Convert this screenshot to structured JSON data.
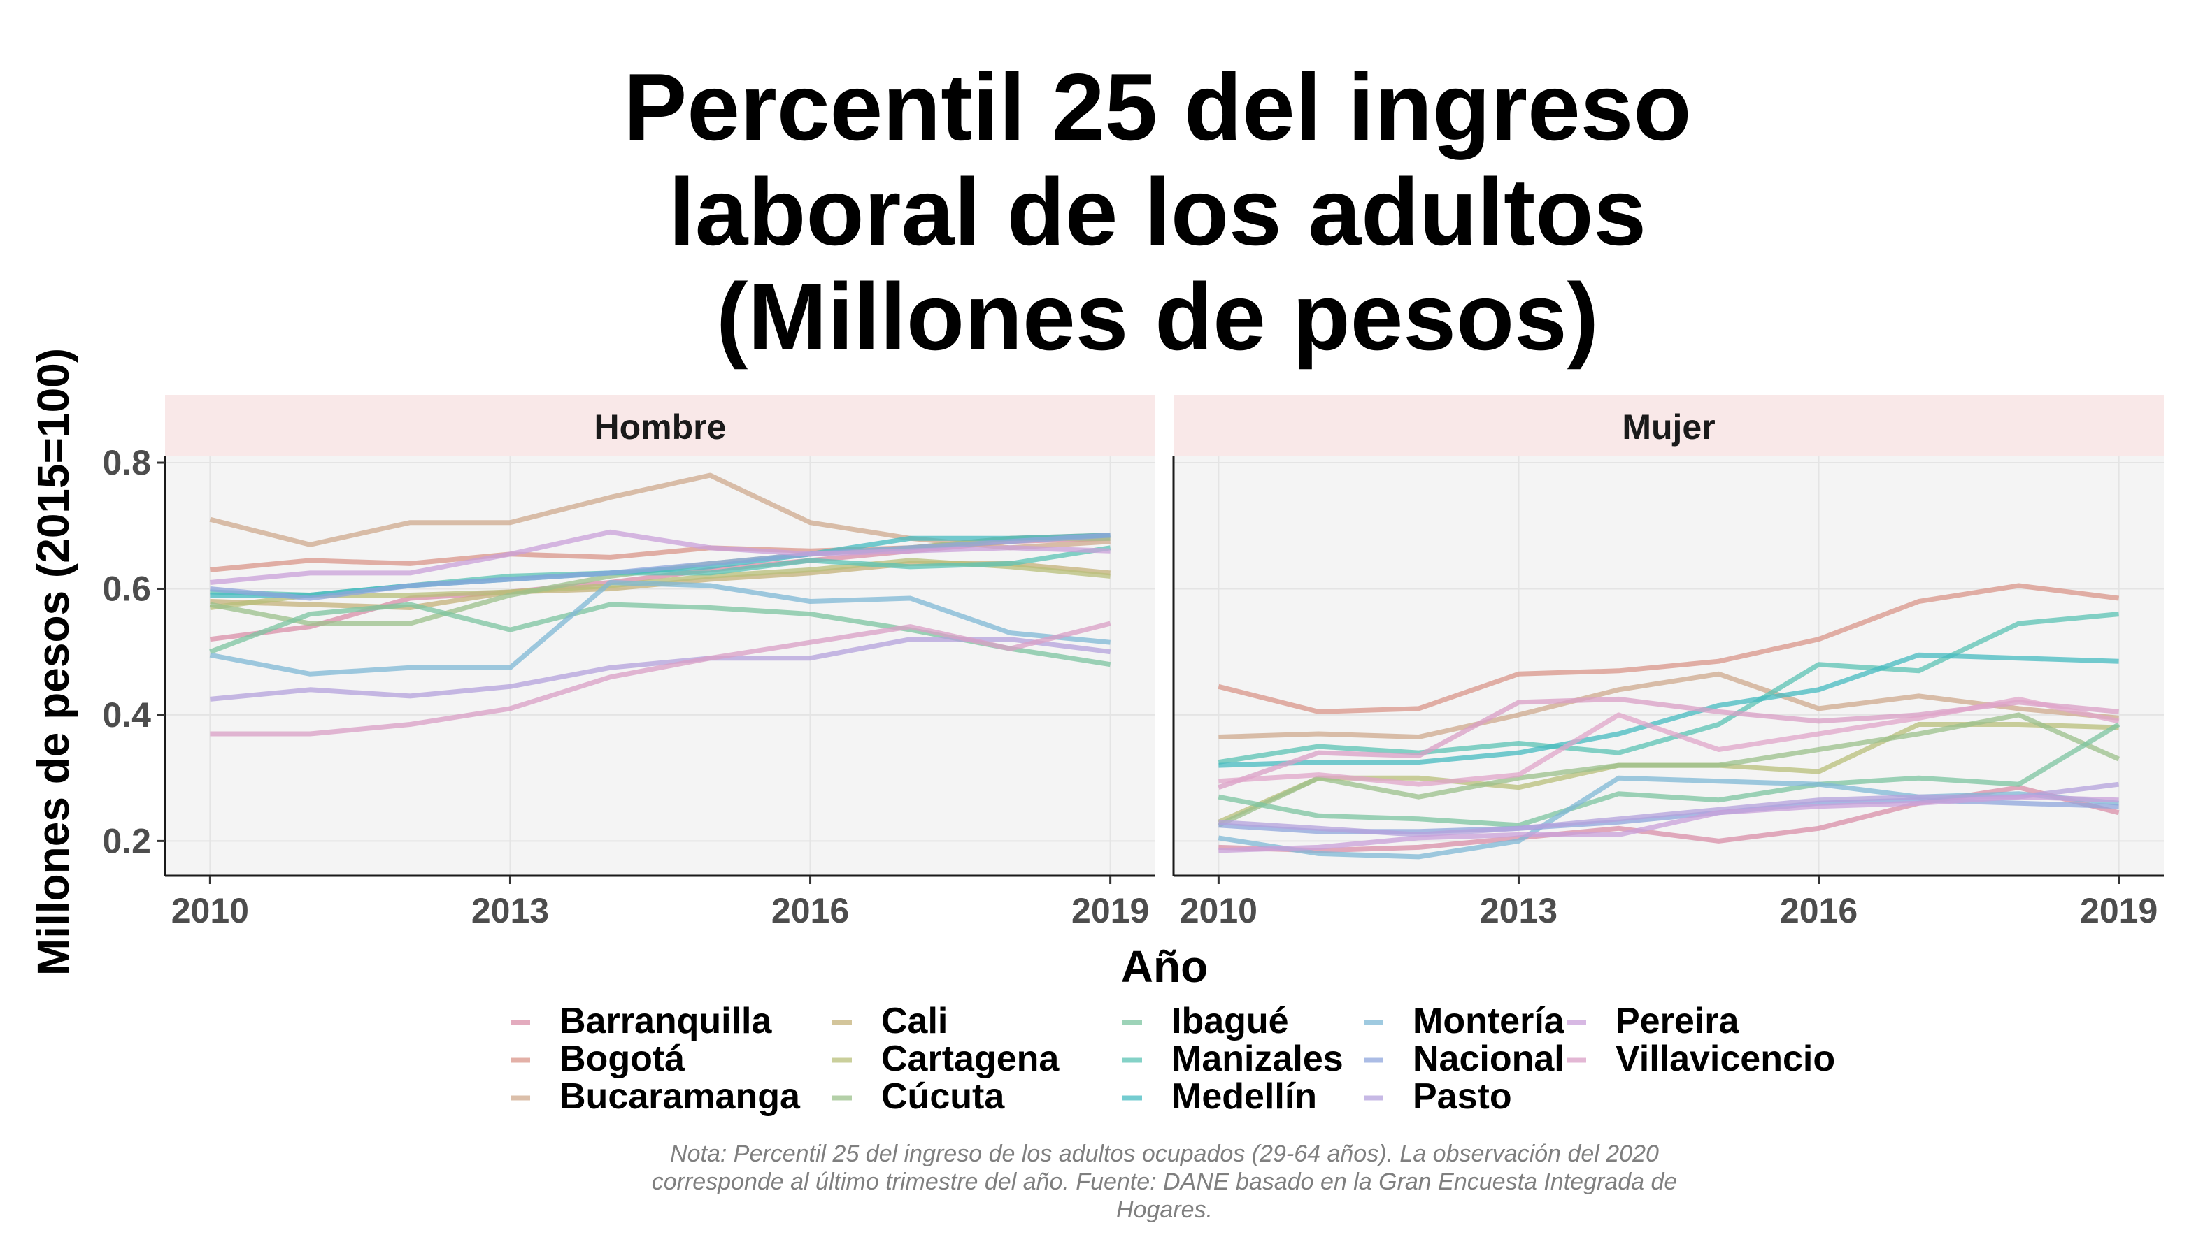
{
  "chart_data": {
    "type": "line",
    "title": [
      "Percentil 25 del ingreso",
      "laboral de los adultos",
      "(Millones de pesos)"
    ],
    "xlabel": "Año",
    "ylabel": "Millones de pesos (2015=100)",
    "x": [
      2010,
      2011,
      2012,
      2013,
      2014,
      2015,
      2016,
      2017,
      2018,
      2019
    ],
    "x_ticks": [
      "2010",
      "2013",
      "2016",
      "2019"
    ],
    "y_ticks": [
      "0.2",
      "0.4",
      "0.6",
      "0.8"
    ],
    "ylim": [
      0.145,
      0.81
    ],
    "xlim": [
      2009.55,
      2019.45
    ],
    "grid": true,
    "legend_position": "bottom",
    "facets": [
      "Hombre",
      "Mujer"
    ],
    "series": [
      {
        "name": "Barranquilla",
        "color": "#d98fa8",
        "Hombre": [
          0.52,
          0.54,
          0.585,
          0.595,
          0.61,
          0.63,
          0.645,
          0.66,
          0.675,
          0.68
        ],
        "Mujer": [
          0.19,
          0.185,
          0.19,
          0.205,
          0.22,
          0.2,
          0.22,
          0.26,
          0.285,
          0.245
        ]
      },
      {
        "name": "Bogotá",
        "color": "#d9958a",
        "Hombre": [
          0.63,
          0.645,
          0.64,
          0.655,
          0.65,
          0.665,
          0.66,
          0.665,
          0.68,
          0.685
        ],
        "Mujer": [
          0.445,
          0.405,
          0.41,
          0.465,
          0.47,
          0.485,
          0.52,
          0.58,
          0.605,
          0.585
        ]
      },
      {
        "name": "Bucaramanga",
        "color": "#cfa98d",
        "Hombre": [
          0.71,
          0.67,
          0.705,
          0.705,
          0.745,
          0.78,
          0.705,
          0.68,
          0.665,
          0.675
        ],
        "Mujer": [
          0.365,
          0.37,
          0.365,
          0.4,
          0.44,
          0.465,
          0.41,
          0.43,
          0.41,
          0.395
        ]
      },
      {
        "name": "Cali",
        "color": "#c4b27a",
        "Hombre": [
          0.58,
          0.575,
          0.57,
          0.595,
          0.6,
          0.615,
          0.625,
          0.64,
          0.64,
          0.625
        ]
      },
      {
        "name": "Cartagena",
        "color": "#b8bf7a",
        "Hombre": [
          0.57,
          0.59,
          0.59,
          0.595,
          0.605,
          0.62,
          0.63,
          0.645,
          0.635,
          0.62
        ],
        "Mujer": [
          0.23,
          0.3,
          0.3,
          0.285,
          0.32,
          0.32,
          0.31,
          0.385,
          0.385,
          0.38
        ]
      },
      {
        "name": "Cúcuta",
        "color": "#9bc08b",
        "Hombre": [
          0.575,
          0.545,
          0.545,
          0.59,
          0.62,
          0.64,
          0.655,
          0.665,
          0.68,
          0.68
        ],
        "Mujer": [
          0.225,
          0.3,
          0.27,
          0.3,
          0.32,
          0.32,
          0.345,
          0.37,
          0.4,
          0.33
        ]
      },
      {
        "name": "Ibagué",
        "color": "#7cc4a0",
        "Hombre": [
          0.5,
          0.56,
          0.575,
          0.535,
          0.575,
          0.57,
          0.56,
          0.535,
          0.505,
          0.48
        ],
        "Mujer": [
          0.27,
          0.24,
          0.235,
          0.225,
          0.275,
          0.265,
          0.29,
          0.3,
          0.29,
          0.385
        ]
      },
      {
        "name": "Manizales",
        "color": "#5bc3b4",
        "Hombre": [
          0.595,
          0.59,
          0.605,
          0.62,
          0.625,
          0.625,
          0.645,
          0.635,
          0.64,
          0.665
        ],
        "Mujer": [
          0.325,
          0.35,
          0.34,
          0.355,
          0.34,
          0.385,
          0.48,
          0.47,
          0.545,
          0.56
        ]
      },
      {
        "name": "Medellín",
        "color": "#45bbc0",
        "Hombre": [
          0.59,
          0.59,
          0.605,
          0.615,
          0.625,
          0.635,
          0.655,
          0.68,
          0.68,
          0.685
        ],
        "Mujer": [
          0.32,
          0.325,
          0.325,
          0.34,
          0.37,
          0.415,
          0.44,
          0.495,
          0.49,
          0.485
        ]
      },
      {
        "name": "Montería",
        "color": "#7fb8d6",
        "Hombre": [
          0.495,
          0.465,
          0.475,
          0.475,
          0.61,
          0.605,
          0.58,
          0.585,
          0.53,
          0.515
        ],
        "Mujer": [
          0.205,
          0.18,
          0.175,
          0.2,
          0.3,
          0.295,
          0.29,
          0.27,
          0.275,
          0.26
        ]
      },
      {
        "name": "Nacional",
        "color": "#8fa6dc",
        "Hombre": [
          0.6,
          0.585,
          0.605,
          0.615,
          0.625,
          0.64,
          0.655,
          0.665,
          0.675,
          0.685
        ],
        "Mujer": [
          0.225,
          0.215,
          0.215,
          0.22,
          0.23,
          0.245,
          0.26,
          0.265,
          0.26,
          0.255
        ]
      },
      {
        "name": "Pasto",
        "color": "#b4a2dc",
        "Hombre": [
          0.425,
          0.44,
          0.43,
          0.445,
          0.475,
          0.49,
          0.49,
          0.52,
          0.52,
          0.5
        ],
        "Mujer": [
          0.23,
          0.22,
          0.21,
          0.22,
          0.235,
          0.25,
          0.265,
          0.27,
          0.27,
          0.29
        ]
      },
      {
        "name": "Pereira",
        "color": "#c9a0d9",
        "Hombre": [
          0.61,
          0.625,
          0.625,
          0.655,
          0.69,
          0.665,
          0.655,
          0.66,
          0.665,
          0.66
        ],
        "Mujer": [
          0.185,
          0.19,
          0.205,
          0.21,
          0.21,
          0.245,
          0.255,
          0.26,
          0.27,
          0.265
        ]
      },
      {
        "name": "Villavicencio",
        "color": "#d99fc6",
        "Hombre": [
          0.37,
          0.37,
          0.385,
          0.41,
          0.46,
          0.49,
          0.515,
          0.54,
          0.505,
          0.545
        ],
        "Mujer": [
          0.285,
          0.34,
          0.335,
          0.42,
          0.425,
          0.405,
          0.39,
          0.4,
          0.42,
          0.405
        ]
      },
      {
        "name": "Villavicencio-Mujer-2",
        "color": "#e0a5c9",
        "legend": false,
        "Mujer": [
          0.295,
          0.305,
          0.29,
          0.305,
          0.4,
          0.345,
          0.37,
          0.395,
          0.425,
          0.39
        ]
      }
    ],
    "note": [
      "Nota: Percentil 25 del ingreso de los adultos ocupados (29-64 años). La observación del 2020",
      "corresponde al último trimestre del año. Fuente: DANE basado en la Gran Encuesta Integrada de",
      "Hogares."
    ],
    "legend_columns": [
      [
        "Barranquilla",
        "Bogotá",
        "Bucaramanga"
      ],
      [
        "Cali",
        "Cartagena",
        "Cúcuta"
      ],
      [
        "Ibagué",
        "Manizales",
        "Medellín"
      ],
      [
        "Montería",
        "Nacional",
        "Pasto"
      ],
      [
        "Pereira",
        "Villavicencio"
      ]
    ]
  }
}
